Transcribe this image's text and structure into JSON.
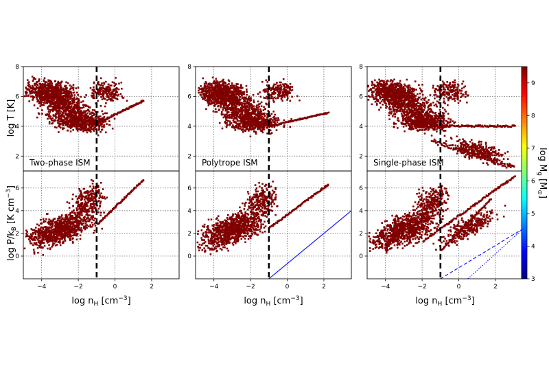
{
  "chart_data": {
    "type": "heatmap",
    "description_panels": [
      "Two-phase ISM",
      "Polytrope ISM",
      "Single-phase ISM"
    ],
    "x_axis": {
      "label_main": "log n",
      "label_sub": "H",
      "label_units": "[cm",
      "label_units_exp": "−3",
      "label_units_close": "]",
      "range": [
        -5,
        3.5
      ],
      "ticks": [
        -4,
        -2,
        0,
        2
      ],
      "tick_labels": [
        "−4",
        "−2",
        "0",
        "2"
      ]
    },
    "top_y_axis": {
      "label": "log T  [K]",
      "range": [
        1,
        8
      ],
      "ticks": [
        2,
        4,
        6,
        8
      ],
      "tick_labels": [
        "2",
        "4",
        "6",
        "8"
      ]
    },
    "bottom_y_axis": {
      "label_main": "log P/k",
      "label_sub": "B",
      "label_units": "[K cm",
      "label_units_exp": "−3",
      "label_units_close": "]",
      "range": [
        -2,
        7.5
      ],
      "ticks": [
        0,
        2,
        4,
        6
      ],
      "tick_labels": [
        "0",
        "2",
        "4",
        "6"
      ]
    },
    "threshold_density_log": -1,
    "colorbar": {
      "label_main": "log M",
      "label_sub": "g",
      "label_units": "[M",
      "label_units_sub": "⊙",
      "label_units_close": "]",
      "range": [
        3,
        9.5
      ],
      "ticks": [
        3,
        4,
        5,
        6,
        7,
        8,
        9
      ],
      "tick_labels": [
        "3",
        "4",
        "5",
        "6",
        "7",
        "8",
        "9"
      ],
      "colormap": "jet"
    },
    "grid": true,
    "reference_lines": {
      "polytrope_pressure": {
        "x": [
          -1,
          3.5
        ],
        "y": [
          -2,
          4
        ]
      },
      "single_phase_dashed": {
        "x": [
          -1,
          3.5
        ],
        "y": [
          -2,
          2.4
        ]
      },
      "single_phase_dotted": {
        "x": [
          0.5,
          3.5
        ],
        "y": [
          -2,
          2.4
        ]
      }
    },
    "colors": {
      "threshold_line": "#000000",
      "reference_line": "#1a1aff"
    }
  }
}
